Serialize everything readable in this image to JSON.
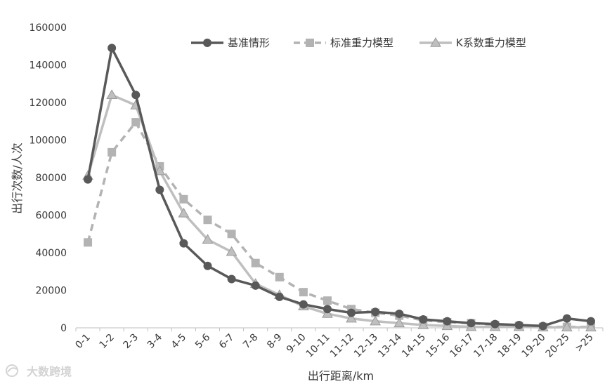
{
  "chart_data": {
    "type": "line",
    "xlabel": "出行距离/km",
    "ylabel": "出行次数/人次",
    "ylim": [
      0,
      160000
    ],
    "yticks": [
      0,
      20000,
      40000,
      60000,
      80000,
      100000,
      120000,
      140000,
      160000
    ],
    "grid": false,
    "legend_position": "top-right",
    "categories": [
      "0-1",
      "1-2",
      "2-3",
      "3-4",
      "4-5",
      "5-6",
      "6-7",
      "7-8",
      "8-9",
      "9-10",
      "10-11",
      "11-12",
      "12-13",
      "13-14",
      "14-15",
      "15-16",
      "16-17",
      "17-18",
      "18-19",
      "19-20",
      "20-25",
      ">25"
    ],
    "series": [
      {
        "name": "基准情形",
        "style": "solid",
        "marker": "circle",
        "color": "#595959",
        "values": [
          79000,
          149000,
          124000,
          73500,
          45000,
          33000,
          26000,
          22500,
          16500,
          12500,
          10000,
          8000,
          8500,
          7500,
          4500,
          3500,
          2500,
          2000,
          1500,
          1000,
          5000,
          3500
        ]
      },
      {
        "name": "标准重力模型",
        "style": "dashed",
        "marker": "square",
        "color": "#b3b3b3",
        "values": [
          45500,
          93500,
          109500,
          86000,
          68500,
          57500,
          50000,
          34500,
          27000,
          19000,
          14500,
          10000,
          8000,
          6500,
          4000,
          3000,
          2500,
          1500,
          1000,
          500,
          500,
          500
        ]
      },
      {
        "name": "K系数重力模型",
        "style": "solid",
        "marker": "triangle",
        "color": "#bfbfbf",
        "values": [
          81000,
          124000,
          118500,
          83500,
          61000,
          47000,
          40500,
          23500,
          17500,
          11500,
          7500,
          5000,
          3500,
          2500,
          1500,
          1000,
          500,
          500,
          500,
          300,
          300,
          300
        ]
      }
    ]
  },
  "watermark": {
    "text": "大数跨境",
    "icon": "watermark-logo-icon"
  }
}
